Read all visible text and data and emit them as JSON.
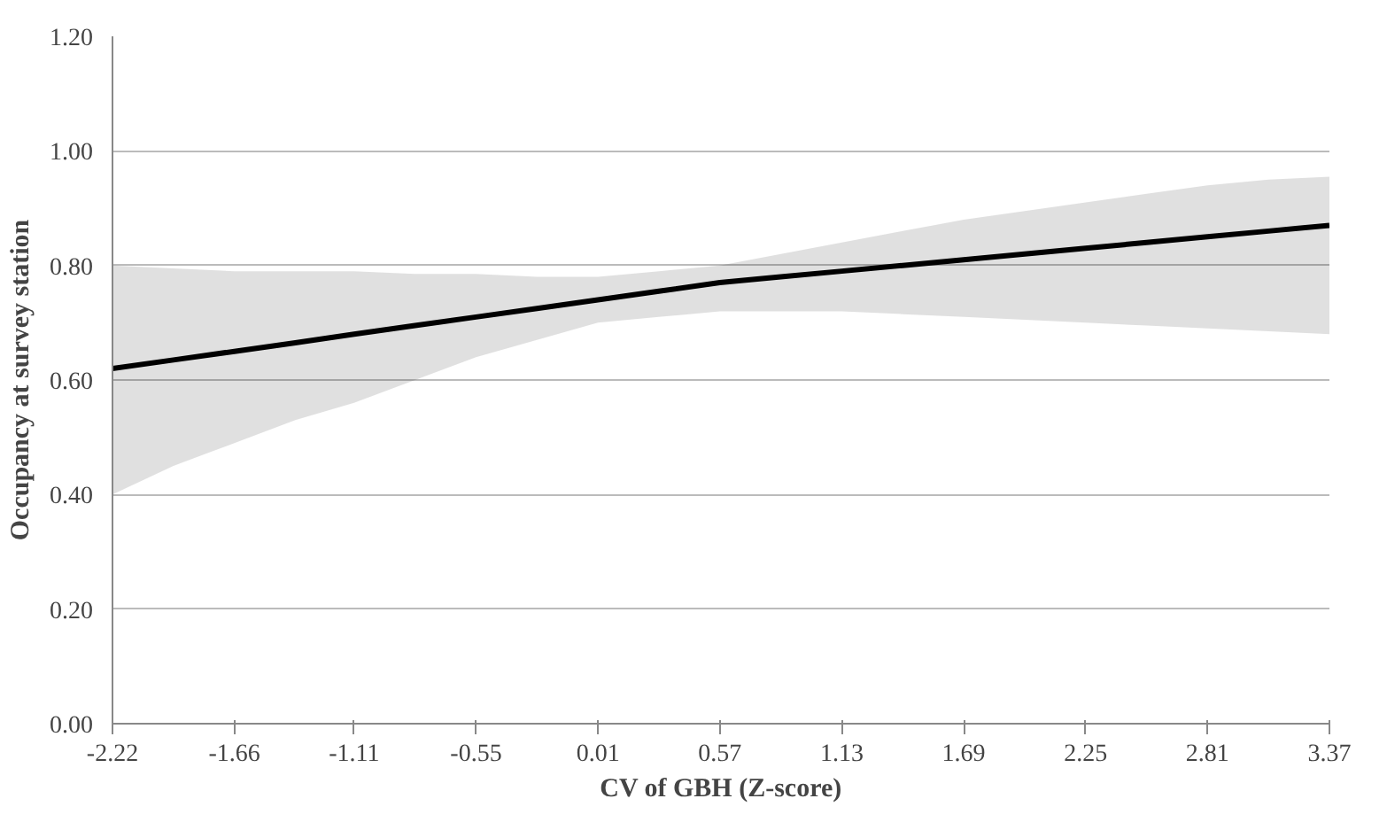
{
  "chart_data": {
    "type": "line",
    "xlabel": "CV of GBH (Z-score)",
    "ylabel": "Occupancy at survey station",
    "x": [
      -2.22,
      -1.94,
      -1.66,
      -1.38,
      -1.11,
      -0.83,
      -0.55,
      -0.27,
      0.01,
      0.29,
      0.57,
      0.85,
      1.13,
      1.41,
      1.69,
      1.97,
      2.25,
      2.53,
      2.81,
      3.09,
      3.37
    ],
    "series": [
      {
        "color": "#000000",
        "values": [
          0.62,
          0.635,
          0.65,
          0.665,
          0.68,
          0.695,
          0.71,
          0.725,
          0.74,
          0.755,
          0.77,
          0.78,
          0.79,
          0.8,
          0.81,
          0.82,
          0.83,
          0.84,
          0.85,
          0.86,
          0.87
        ],
        "lower": [
          0.4,
          0.45,
          0.49,
          0.53,
          0.56,
          0.6,
          0.64,
          0.67,
          0.7,
          0.71,
          0.72,
          0.72,
          0.72,
          0.715,
          0.71,
          0.705,
          0.7,
          0.695,
          0.69,
          0.685,
          0.68
        ],
        "upper": [
          0.8,
          0.795,
          0.79,
          0.79,
          0.79,
          0.785,
          0.785,
          0.78,
          0.78,
          0.79,
          0.8,
          0.82,
          0.84,
          0.86,
          0.88,
          0.895,
          0.91,
          0.925,
          0.94,
          0.95,
          0.955
        ]
      }
    ],
    "xlim": [
      -2.22,
      3.37
    ],
    "xticks": [
      {
        "value": -2.22,
        "label": "-2.22"
      },
      {
        "value": -1.66,
        "label": "-1.66"
      },
      {
        "value": -1.11,
        "label": "-1.11"
      },
      {
        "value": -0.55,
        "label": "-0.55"
      },
      {
        "value": 0.01,
        "label": "0.01"
      },
      {
        "value": 0.57,
        "label": "0.57"
      },
      {
        "value": 1.13,
        "label": "1.13"
      },
      {
        "value": 1.69,
        "label": "1.69"
      },
      {
        "value": 2.25,
        "label": "2.25"
      },
      {
        "value": 2.81,
        "label": "2.81"
      },
      {
        "value": 3.37,
        "label": "3.37"
      }
    ],
    "ylim": [
      0,
      1.2
    ],
    "yticks": [
      {
        "value": 0,
        "label": "0.00"
      },
      {
        "value": 0.2,
        "label": "0.20"
      },
      {
        "value": 0.4,
        "label": "0.40"
      },
      {
        "value": 0.6,
        "label": "0.60"
      },
      {
        "value": 0.8,
        "label": "0.80"
      },
      {
        "value": 1.0,
        "label": "1.00"
      },
      {
        "value": 1.2,
        "label": "1.20"
      }
    ],
    "grid": "y",
    "marker": "none",
    "line_style": "solid"
  }
}
